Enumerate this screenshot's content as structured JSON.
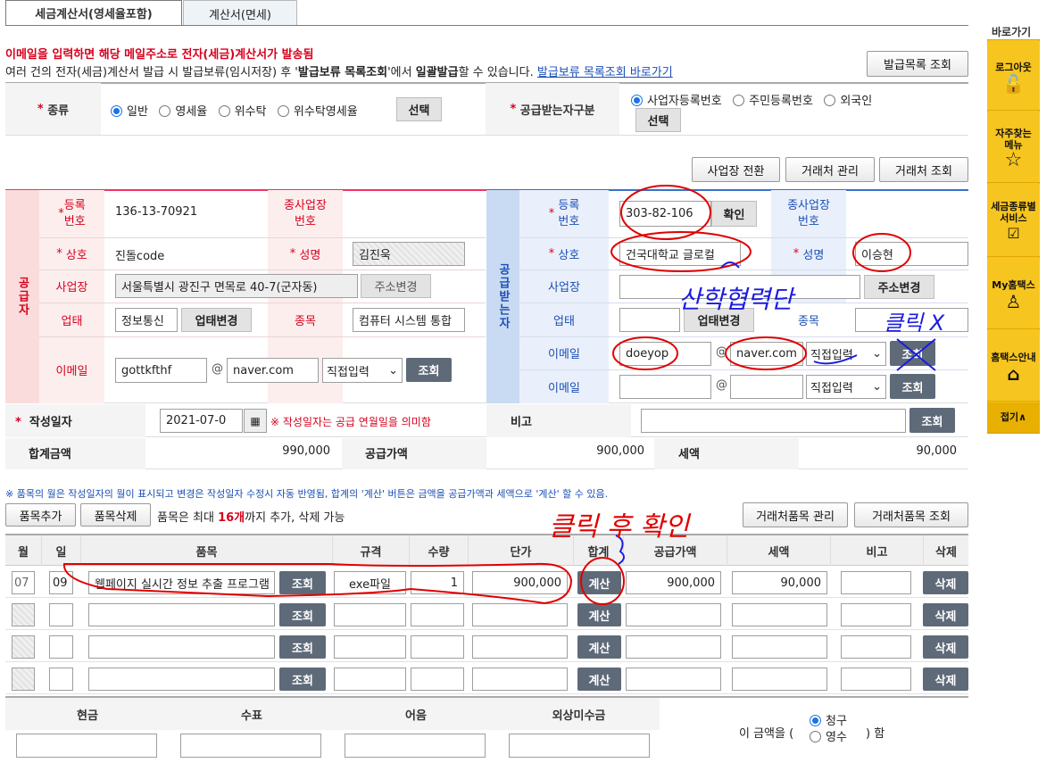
{
  "tabs": [
    "세금계산서(영세율포함)",
    "계산서(면세)"
  ],
  "notice": {
    "line1": "이메일을 입력하면 해당 메일주소로 전자(세금)계산서가 발송됨",
    "line2_a": "여러 건의 전자(세금)계산서 발급 시 발급보류(임시저장) 후 '",
    "line2_b": "발급보류 목록조회",
    "line2_c": "'에서 ",
    "line2_d": "일괄발급",
    "line2_e": "할 수 있습니다.",
    "link": "발급보류 목록조회 바로가기"
  },
  "btn_issue_list": "발급목록 조회",
  "type_row": {
    "label": "종류",
    "options": [
      "일반",
      "영세율",
      "위수탁",
      "위수탁영세율"
    ],
    "select": "선택",
    "recv_label": "공급받는자구분",
    "recv_options": [
      "사업자등록번호",
      "주민등록번호",
      "외국인"
    ],
    "recv_select": "선택"
  },
  "top_buttons": [
    "사업장 전환",
    "거래처 관리",
    "거래처 조회"
  ],
  "supplier": {
    "side": "공급자",
    "reg_label": "등록\n번호",
    "reg_no": "136-13-70921",
    "sub_label": "종사업장\n번호",
    "name_label": "상호",
    "name": "진돌code",
    "ceo_label": "성명",
    "ceo": "김진욱",
    "addr_label": "사업장",
    "addr": "서울특별시 광진구 면목로 40-7(군자동)",
    "addr_btn": "주소변경",
    "biz_label": "업태",
    "biz": "정보통신",
    "biz_btn": "업태변경",
    "item_label": "종목",
    "item": "컴퓨터 시스템 통합",
    "email_label": "이메일",
    "email_id": "gottkfthf",
    "email_domain": "naver.com",
    "email_sel": "직접입력",
    "email_btn": "조회"
  },
  "receiver": {
    "side": "공급받는자",
    "reg_label": "등록\n번호",
    "reg_no": "303-82-106",
    "confirm": "확인",
    "sub_label": "종사업장\n번호",
    "name_label": "상호",
    "name": "건국대학교 글로컬",
    "ceo_label": "성명",
    "ceo": "이승현",
    "addr_label": "사업장",
    "addr_btn": "주소변경",
    "biz_label": "업태",
    "biz_btn": "업태변경",
    "item_label": "종목",
    "email_label": "이메일",
    "email_id": "doeyop",
    "email_domain": "naver.com",
    "email_sel": "직접입력",
    "email_btn": "조회",
    "email2_label": "이메일",
    "email2_sel": "직접입력",
    "email2_btn": "조회"
  },
  "date_row": {
    "label": "작성일자",
    "value": "2021-07-0",
    "note": "※ 작성일자는 공급 연월일을 의미함",
    "remark_label": "비고",
    "btn": "조회"
  },
  "totals": {
    "total_label": "합계금액",
    "total": "990,000",
    "supply_label": "공급가액",
    "supply": "900,000",
    "tax_label": "세액",
    "tax": "90,000"
  },
  "item_note": "※ 품목의 월은 작성일자의 월이 표시되고 변경은 작성일자 수정시 자동 반영됨, 합계의 '계산' 버튼은 금액을 공급가액과 세액으로 '계산' 할 수 있음.",
  "item_bar": {
    "add": "품목추가",
    "del": "품목삭제",
    "text_a": "품목은 최대 ",
    "text_b": "16개",
    "text_c": "까지 추가, 삭제 가능",
    "manage": "거래처품목 관리",
    "query": "거래처품목 조회"
  },
  "columns": [
    "월",
    "일",
    "품목",
    "규격",
    "수량",
    "단가",
    "합계",
    "공급가액",
    "세액",
    "비고",
    "삭제"
  ],
  "rows": [
    {
      "month": "07",
      "day": "09",
      "item": "웹페이지 실시간 정보 추출 프로그램",
      "spec": "exe파일",
      "qty": "1",
      "price": "900,000",
      "supply": "900,000",
      "tax": "90,000"
    },
    {
      "month": "",
      "day": "",
      "item": "",
      "spec": "",
      "qty": "",
      "price": "",
      "supply": "",
      "tax": ""
    },
    {
      "month": "",
      "day": "",
      "item": "",
      "spec": "",
      "qty": "",
      "price": "",
      "supply": "",
      "tax": ""
    },
    {
      "month": "",
      "day": "",
      "item": "",
      "spec": "",
      "qty": "",
      "price": "",
      "supply": "",
      "tax": ""
    }
  ],
  "row_btns": {
    "query": "조회",
    "calc": "계산",
    "delete": "삭제"
  },
  "payment": {
    "cols": [
      "현금",
      "수표",
      "어음",
      "외상미수금"
    ],
    "amount_a": "이 금액을 (",
    "opt1": "청구",
    "opt2": "영수",
    "amount_b": ") 함"
  },
  "quickmenu": {
    "title": "바로가기",
    "items": [
      "로그아웃",
      "자주찾는\n메뉴",
      "세금종류별\n서비스",
      "My홈택스",
      "홈택스안내"
    ],
    "fold": "접기∧"
  },
  "annotations": [
    "산학협력단",
    "클릭 X",
    "클릭 후 확인"
  ],
  "colors": {
    "supplier_bg": "#fdeeee",
    "receiver_bg": "#eaf0fb",
    "annot": "#e00000",
    "annot_blue": "#1b1be0"
  }
}
